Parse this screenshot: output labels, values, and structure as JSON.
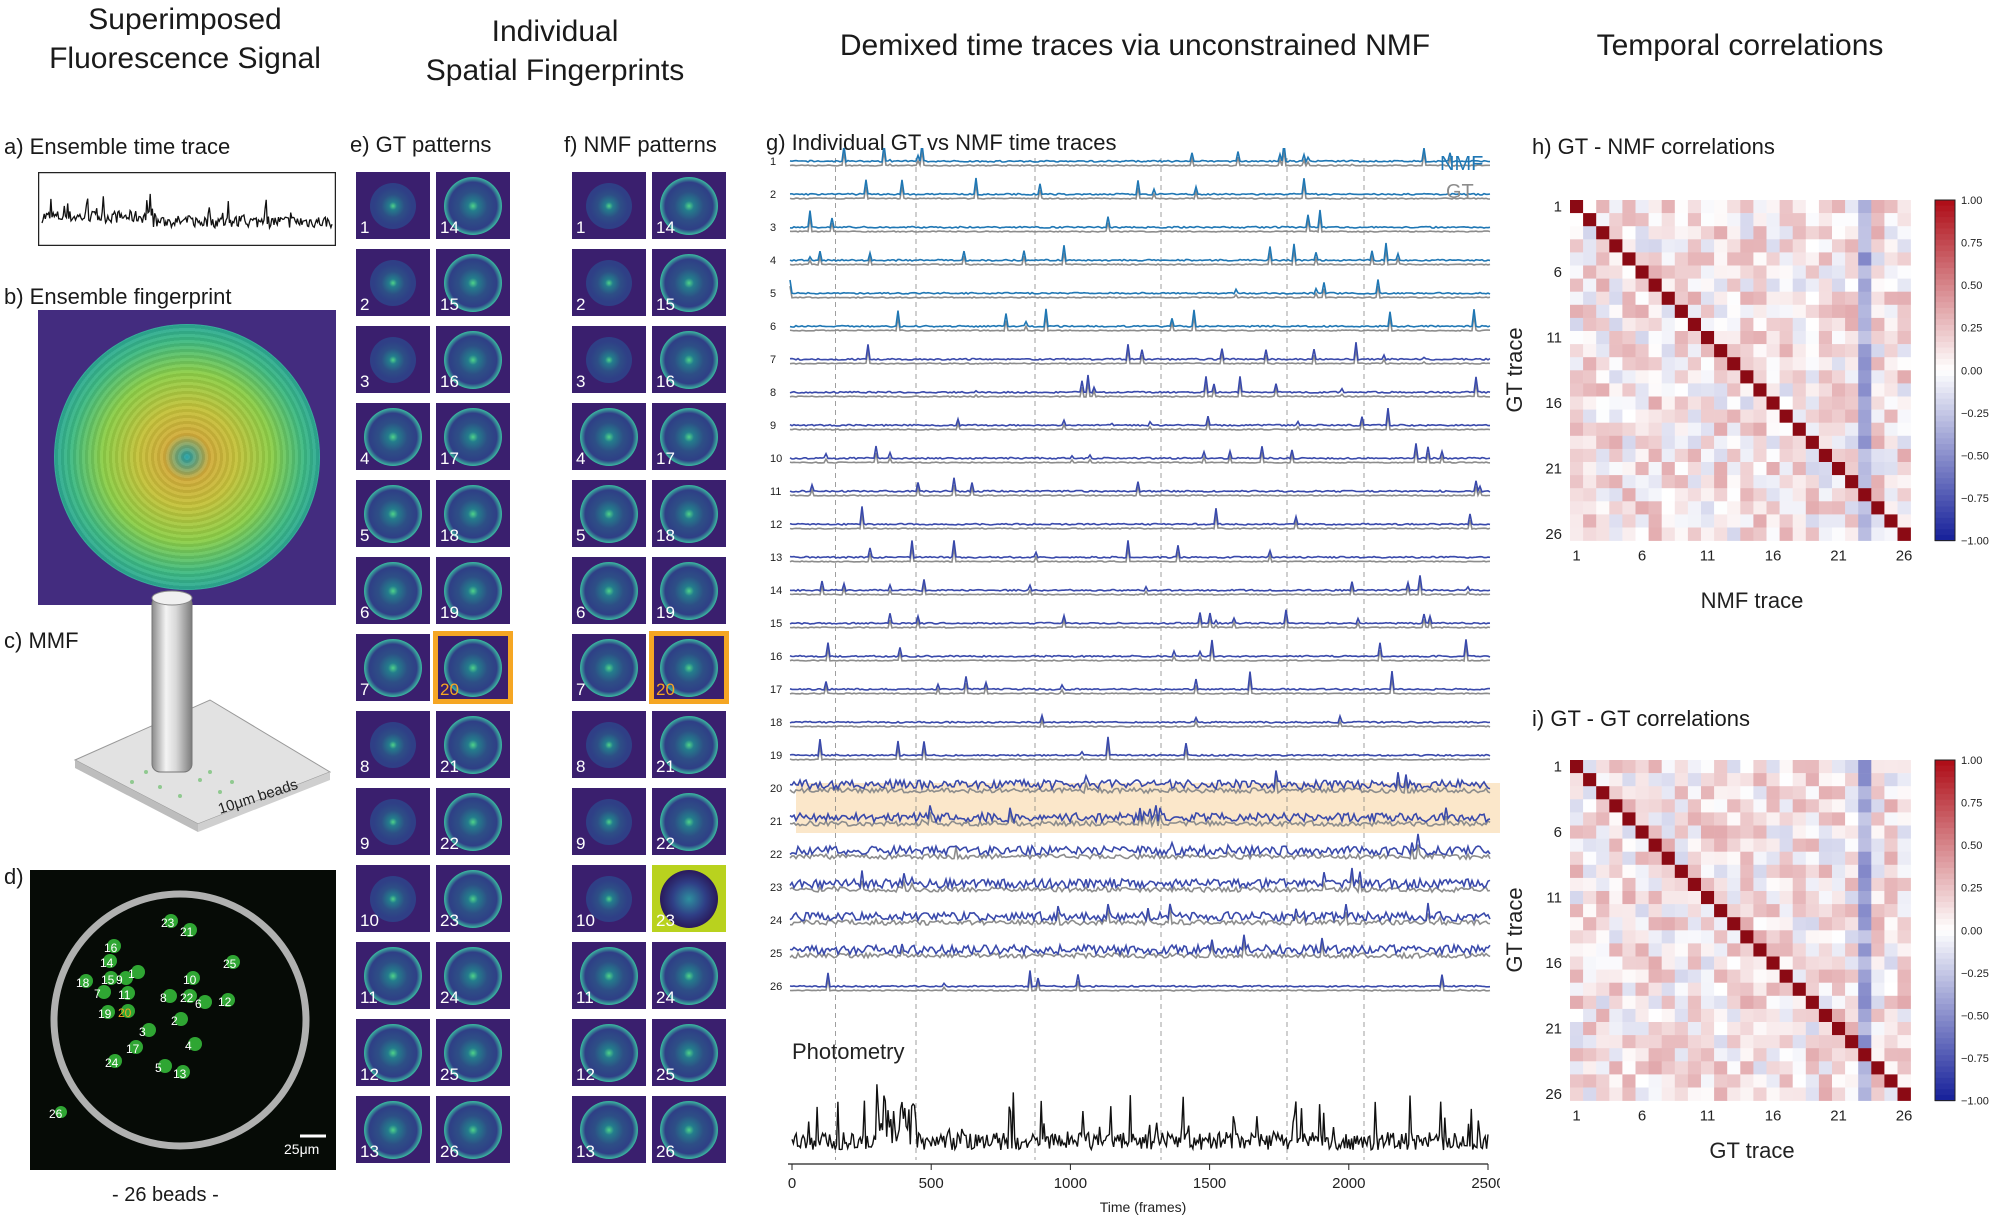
{
  "columns": {
    "col1": [
      "Superimposed",
      "Fluorescence Signal"
    ],
    "col2": [
      "Individual",
      "Spatial Fingerprints"
    ],
    "col3": "Demixed time traces via unconstrained NMF",
    "col4": "Temporal correlations"
  },
  "panels": {
    "a": "a)  Ensemble time trace",
    "b": "b)  Ensemble fingerprint",
    "c": "c)  MMF",
    "c_note": "10μm beads",
    "d": "d)",
    "d_scale": "25μm",
    "d_caption": "- 26 beads -",
    "e": "e) GT patterns",
    "f": "f) NMF patterns",
    "g": "g) Individual GT vs NMF time traces",
    "g_nmf": "NMF",
    "g_gt": "GT",
    "photometry": "Photometry",
    "h": "h)  GT - NMF correlations",
    "i": "i)  GT - GT correlations"
  },
  "colors": {
    "nmf": "#1f77b4",
    "nmf_dark": "#3949ab",
    "gt": "#8c8c8c",
    "highlight": "#f5a623",
    "highlight_band": "#f9dfb8",
    "tile_bg": "#3a1f6e"
  },
  "beads": [
    {
      "n": "1"
    },
    {
      "n": "2"
    },
    {
      "n": "3"
    },
    {
      "n": "4"
    },
    {
      "n": "5"
    },
    {
      "n": "6"
    },
    {
      "n": "7"
    },
    {
      "n": "8"
    },
    {
      "n": "9"
    },
    {
      "n": "10"
    },
    {
      "n": "11"
    },
    {
      "n": "12"
    },
    {
      "n": "13"
    },
    {
      "n": "14"
    },
    {
      "n": "15"
    },
    {
      "n": "16"
    },
    {
      "n": "17"
    },
    {
      "n": "18"
    },
    {
      "n": "19"
    },
    {
      "n": "20"
    },
    {
      "n": "21"
    },
    {
      "n": "22"
    },
    {
      "n": "23"
    },
    {
      "n": "24"
    },
    {
      "n": "25"
    },
    {
      "n": "26"
    }
  ],
  "chart_data": [
    {
      "type": "line",
      "title": "Individual GT vs NMF time traces",
      "series": [
        {
          "name": "NMF"
        },
        {
          "name": "GT"
        }
      ],
      "trace_labels": [
        "1",
        "2",
        "3",
        "4",
        "5",
        "6",
        "7",
        "8",
        "9",
        "10",
        "11",
        "12",
        "13",
        "14",
        "15",
        "16",
        "17",
        "18",
        "19",
        "20",
        "21",
        "22",
        "23",
        "24",
        "25",
        "26"
      ],
      "highlighted_trace": 20
    },
    {
      "type": "line",
      "title": "Photometry",
      "xlabel": "Time (frames)",
      "xlim": [
        0,
        2500
      ],
      "xticks": [
        "0",
        "500",
        "1000",
        "1500",
        "2000",
        "2500"
      ]
    },
    {
      "type": "heatmap",
      "title": "GT - NMF correlations",
      "xlabel": "NMF trace",
      "ylabel": "GT trace",
      "ticks": [
        "1",
        "6",
        "11",
        "16",
        "21",
        "26"
      ],
      "colorbar_ticks": [
        "1.00",
        "0.75",
        "0.50",
        "0.25",
        "0.00",
        "−0.25",
        "−0.50",
        "−0.75",
        "−1.00"
      ],
      "clim": [
        -1,
        1
      ],
      "diagonal": 1.0
    },
    {
      "type": "heatmap",
      "title": "GT - GT correlations",
      "xlabel": "GT trace",
      "ylabel": "GT trace",
      "ticks": [
        "1",
        "6",
        "11",
        "16",
        "21",
        "26"
      ],
      "colorbar_ticks": [
        "1.00",
        "0.75",
        "0.50",
        "0.25",
        "0.00",
        "−0.25",
        "−0.50",
        "−0.75",
        "−1.00"
      ],
      "clim": [
        -1,
        1
      ],
      "diagonal": 1.0
    }
  ]
}
